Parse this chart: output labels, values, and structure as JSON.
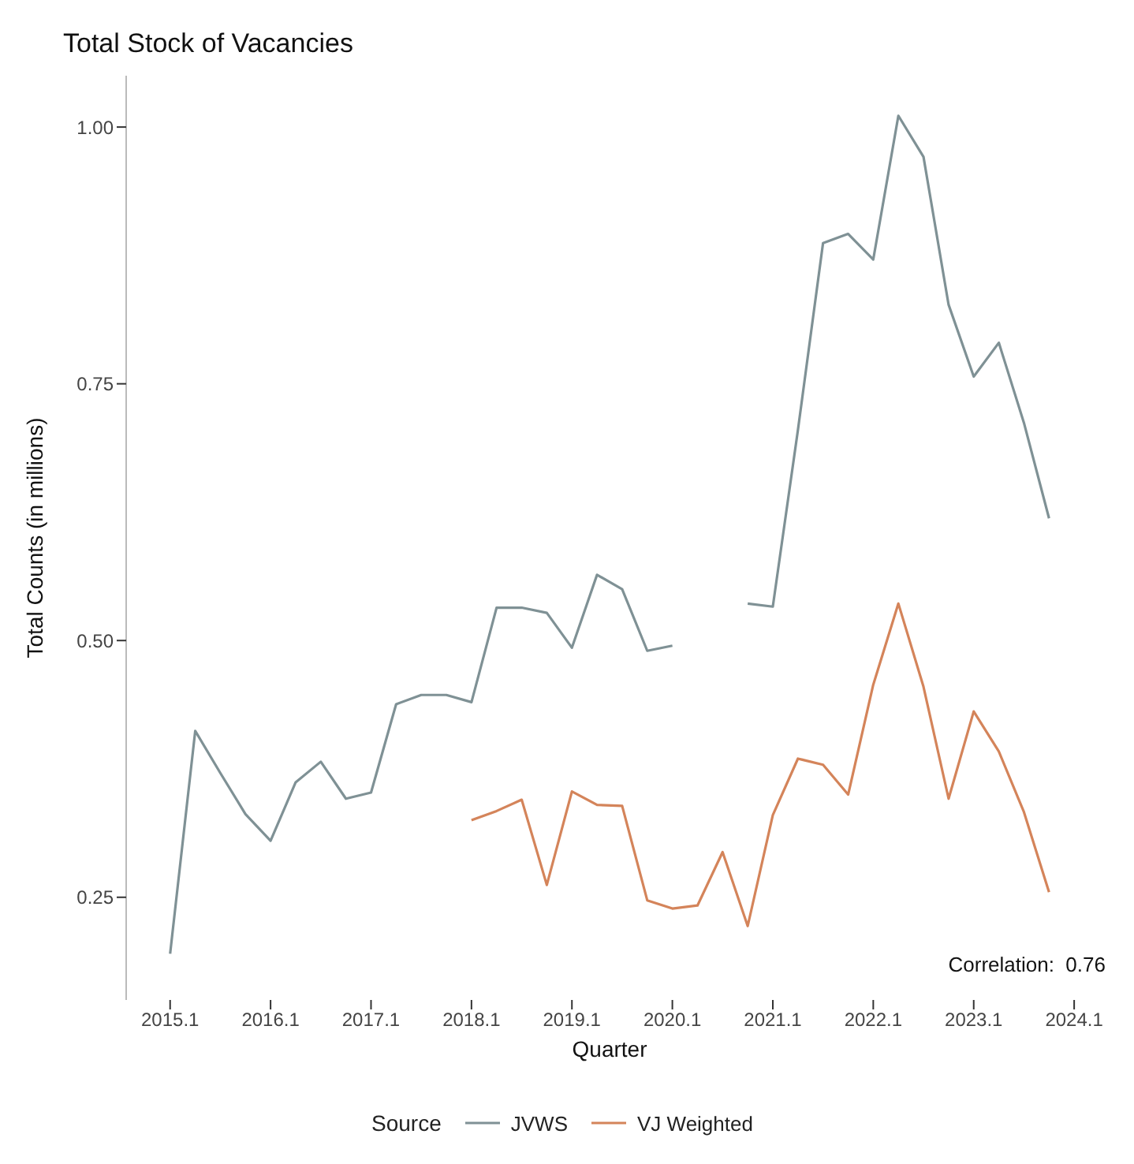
{
  "chart_data": {
    "type": "line",
    "title": "Total Stock of Vacancies",
    "xlabel": "Quarter",
    "ylabel": "Total Counts (in millions)",
    "legend_title": "Source",
    "categories": [
      "2015.1",
      null,
      null,
      null,
      "2016.1",
      null,
      null,
      null,
      "2017.1",
      null,
      null,
      null,
      "2018.1",
      null,
      null,
      null,
      "2019.1",
      null,
      null,
      null,
      "2020.1",
      null,
      null,
      null,
      "2021.1",
      null,
      null,
      null,
      "2022.1",
      null,
      null,
      null,
      "2023.1",
      null,
      null,
      null,
      "2024.1"
    ],
    "series": [
      {
        "name": "JVWS",
        "color": "#7f9195",
        "values": [
          0.195,
          0.412,
          0.371,
          0.331,
          0.305,
          0.362,
          0.382,
          0.346,
          0.352,
          0.438,
          0.447,
          0.447,
          0.44,
          0.532,
          0.532,
          0.527,
          0.493,
          0.564,
          0.55,
          0.49,
          0.495,
          null,
          null,
          0.536,
          0.533,
          0.705,
          0.887,
          0.896,
          0.871,
          1.011,
          0.971,
          0.827,
          0.757,
          0.79,
          0.712,
          0.619,
          null
        ]
      },
      {
        "name": "VJ Weighted",
        "color": "#d4845a",
        "values": [
          null,
          null,
          null,
          null,
          null,
          null,
          null,
          null,
          null,
          null,
          null,
          null,
          0.325,
          0.334,
          0.345,
          0.262,
          0.353,
          0.34,
          0.339,
          0.247,
          0.239,
          0.242,
          0.294,
          0.222,
          0.33,
          0.385,
          0.379,
          0.35,
          0.457,
          0.536,
          0.455,
          0.346,
          0.431,
          0.392,
          0.333,
          0.255,
          null
        ]
      }
    ],
    "ylim": [
      0.15,
      1.05
    ],
    "yticks": [
      {
        "value": 0.25,
        "label": "0.25"
      },
      {
        "value": 0.5,
        "label": "0.50"
      },
      {
        "value": 0.75,
        "label": "0.75"
      },
      {
        "value": 1,
        "label": "1.00"
      }
    ],
    "annotations": [
      "Correlation:  0.76"
    ],
    "grid": false,
    "legend": "bottom",
    "marker": "none",
    "line_style": "solid"
  }
}
